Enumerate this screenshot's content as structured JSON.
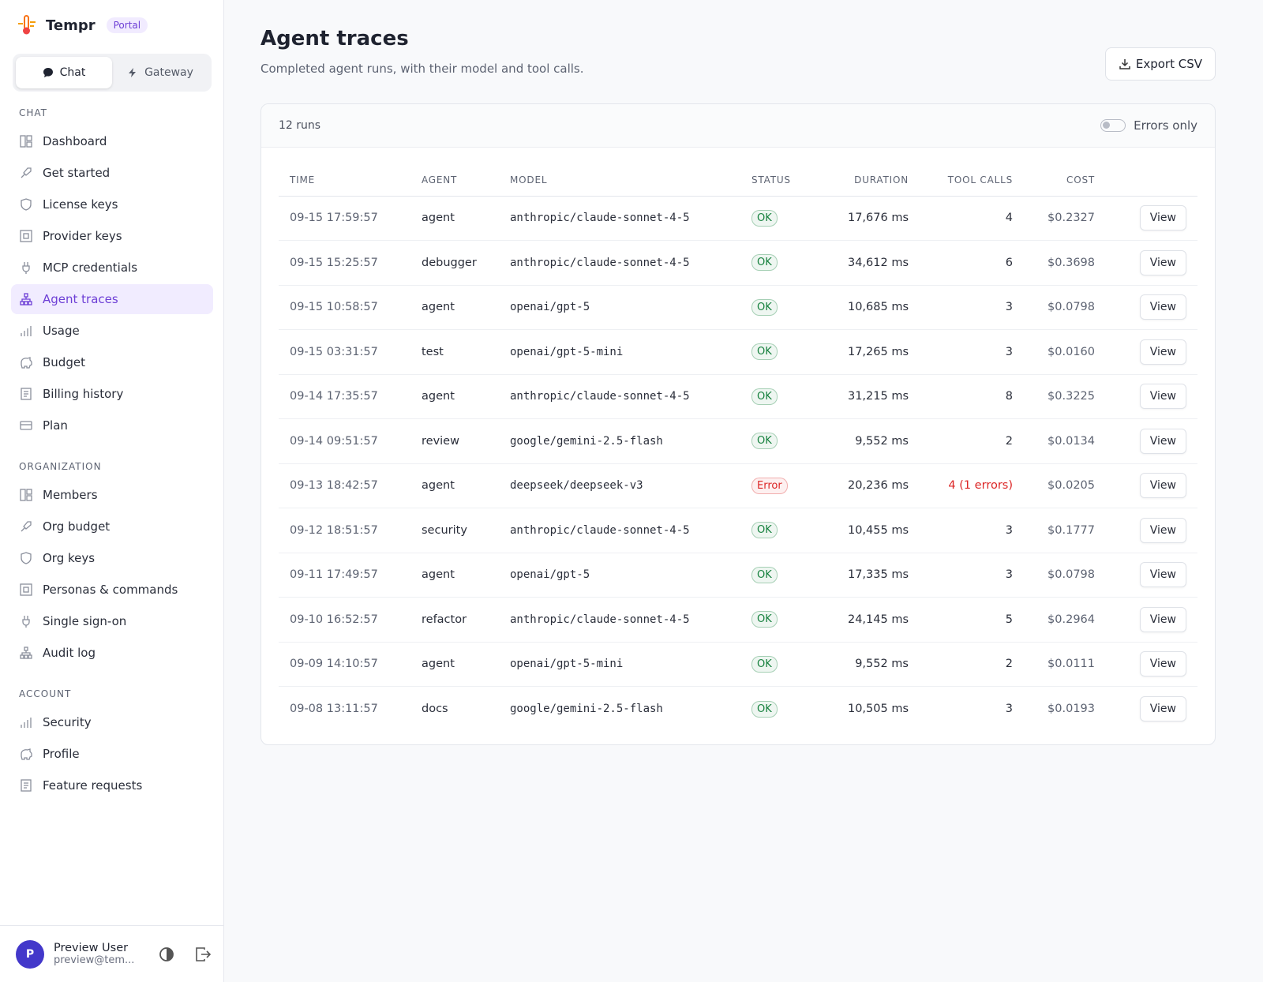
{
  "brand": {
    "name": "Tempr",
    "badge": "Portal"
  },
  "mode_tabs": [
    "Chat",
    "Gateway"
  ],
  "nav": [
    {
      "heading": "CHAT",
      "items": [
        "Dashboard",
        "Get started",
        "License keys",
        "Provider keys",
        "MCP credentials",
        "Agent traces",
        "Usage",
        "Budget",
        "Billing history",
        "Plan"
      ]
    },
    {
      "heading": "ORGANIZATION",
      "items": [
        "Members",
        "Org budget",
        "Org keys",
        "Personas & commands",
        "Single sign-on",
        "Audit log"
      ]
    },
    {
      "heading": "ACCOUNT",
      "items": [
        "Security",
        "Profile",
        "Feature requests"
      ]
    }
  ],
  "user": {
    "initial": "P",
    "name": "Preview User",
    "email": "preview@tem..."
  },
  "header": {
    "title": "Agent traces",
    "subtitle": "Completed agent runs, with their model and tool calls.",
    "export": "Export CSV"
  },
  "table": {
    "count": "12 runs",
    "filter": "Errors only",
    "columns": [
      "TIME",
      "AGENT",
      "MODEL",
      "STATUS",
      "DURATION",
      "TOOL CALLS",
      "COST"
    ],
    "action": "View",
    "status_colors": {
      "OK": "#15803d",
      "Error": "#dc2626"
    },
    "rows": [
      [
        "09-15 17:59:57",
        "agent",
        "anthropic/claude-sonnet-4-5",
        "OK",
        "17,676 ms",
        "4",
        "$0.2327"
      ],
      [
        "09-15 15:25:57",
        "debugger",
        "anthropic/claude-sonnet-4-5",
        "OK",
        "34,612 ms",
        "6",
        "$0.3698"
      ],
      [
        "09-15 10:58:57",
        "agent",
        "openai/gpt-5",
        "OK",
        "10,685 ms",
        "3",
        "$0.0798"
      ],
      [
        "09-15 03:31:57",
        "test",
        "openai/gpt-5-mini",
        "OK",
        "17,265 ms",
        "3",
        "$0.0160"
      ],
      [
        "09-14 17:35:57",
        "agent",
        "anthropic/claude-sonnet-4-5",
        "OK",
        "31,215 ms",
        "8",
        "$0.3225"
      ],
      [
        "09-14 09:51:57",
        "review",
        "google/gemini-2.5-flash",
        "OK",
        "9,552 ms",
        "2",
        "$0.0134"
      ],
      [
        "09-13 18:42:57",
        "agent",
        "deepseek/deepseek-v3",
        "Error",
        "20,236 ms",
        "4 (1 errors)",
        "$0.0205"
      ],
      [
        "09-12 18:51:57",
        "security",
        "anthropic/claude-sonnet-4-5",
        "OK",
        "10,455 ms",
        "3",
        "$0.1777"
      ],
      [
        "09-11 17:49:57",
        "agent",
        "openai/gpt-5",
        "OK",
        "17,335 ms",
        "3",
        "$0.0798"
      ],
      [
        "09-10 16:52:57",
        "refactor",
        "anthropic/claude-sonnet-4-5",
        "OK",
        "24,145 ms",
        "5",
        "$0.2964"
      ],
      [
        "09-09 14:10:57",
        "agent",
        "openai/gpt-5-mini",
        "OK",
        "9,552 ms",
        "2",
        "$0.0111"
      ],
      [
        "09-08 13:11:57",
        "docs",
        "google/gemini-2.5-flash",
        "OK",
        "10,505 ms",
        "3",
        "$0.0193"
      ]
    ]
  }
}
